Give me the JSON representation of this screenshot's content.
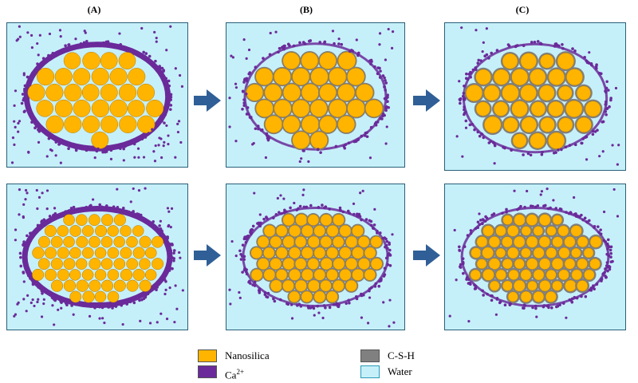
{
  "columns": [
    {
      "label": "(A)"
    },
    {
      "label": "(B)"
    },
    {
      "label": "(C)"
    }
  ],
  "legend": [
    {
      "label": "Nanosilica",
      "sup": "",
      "color": "#ffb400"
    },
    {
      "label": "Ca",
      "sup": "2+",
      "color": "#6a2a9a"
    },
    {
      "label": "C-S-H",
      "sup": "",
      "color": "#808080"
    },
    {
      "label": "Water",
      "sup": "",
      "color": "#c6f0f9"
    }
  ],
  "colors": {
    "nanosilica": "#ffb400",
    "calcium": "#6a2a9a",
    "csh": "#808080",
    "water": "#c6f0f9",
    "arrow": "#2f5f96"
  }
}
